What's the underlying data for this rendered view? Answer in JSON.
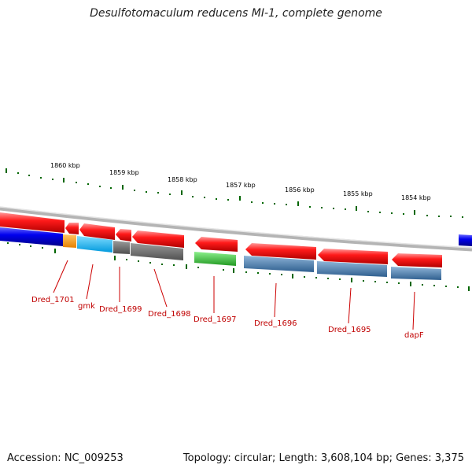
{
  "title": "Desulfotomaculum reducens MI-1, complete genome",
  "footer": {
    "accession": "Accession: NC_009253",
    "topology": "Topology: circular; Length: 3,608,104 bp; Genes: 3,375"
  },
  "scale_labels": [
    "1860 kbp",
    "1859 kbp",
    "1858 kbp",
    "1857 kbp",
    "1856 kbp",
    "1855 kbp",
    "1854 kbp"
  ],
  "gene_labels": [
    "Dred_1701",
    "gmk",
    "Dred_1699",
    "Dred_1698",
    "Dred_1697",
    "Dred_1696",
    "Dred_1695",
    "dapF"
  ],
  "colors": {
    "cds_strand": "#ff0000",
    "blue_gene": "#0000ff",
    "orange_gene": "#ff9900",
    "cyan_gene": "#00bbff",
    "gray_gene": "#666666",
    "green_gene": "#33cc33",
    "steel_gene": "#4682b4",
    "tick": "#006600",
    "label": "#cc0000"
  }
}
